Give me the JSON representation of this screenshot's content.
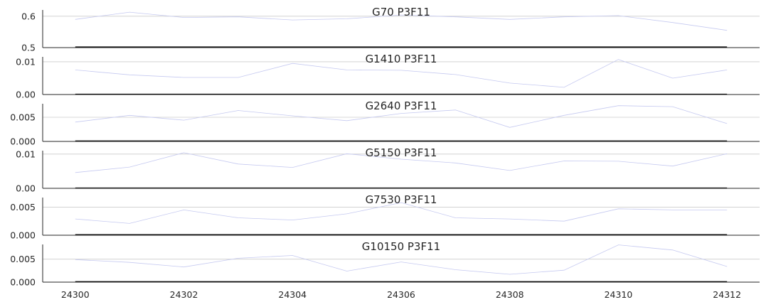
{
  "chart_data": {
    "type": "line",
    "x": [
      24300,
      24301,
      24302,
      24303,
      24304,
      24305,
      24306,
      24307,
      24308,
      24309,
      24310,
      24311,
      24312
    ],
    "x_ticks": [
      24300,
      24302,
      24304,
      24306,
      24308,
      24310,
      24312
    ],
    "xlim": [
      24299.4,
      24312.6
    ],
    "grid": "horizontal",
    "colors": {
      "series": "#c5c9f0",
      "baseline": "#111111",
      "grid": "#cccccc",
      "axis": "#262626",
      "text": "#262626"
    },
    "panels": [
      {
        "title": "G70 P3F11",
        "ylim": [
          0.5,
          0.62
        ],
        "yticks": [
          0.5,
          0.6
        ],
        "tick_labels": [
          "0.5",
          "0.6"
        ],
        "values": [
          0.59,
          0.613,
          0.596,
          0.598,
          0.588,
          0.592,
          0.604,
          0.598,
          0.59,
          0.598,
          0.602,
          0.58,
          0.555
        ],
        "baseline": 0.502
      },
      {
        "title": "G1410 P3F11",
        "ylim": [
          0.0,
          0.0115
        ],
        "yticks": [
          0.0,
          0.01
        ],
        "tick_labels": [
          "0.00",
          "0.01"
        ],
        "values": [
          0.0075,
          0.006,
          0.0052,
          0.0052,
          0.0095,
          0.0075,
          0.0074,
          0.0061,
          0.0035,
          0.0022,
          0.0107,
          0.005,
          0.0075
        ],
        "baseline": 0.0001
      },
      {
        "title": "G2640 P3F11",
        "ylim": [
          0.0,
          0.0078
        ],
        "yticks": [
          0.0,
          0.005
        ],
        "tick_labels": [
          "0.000",
          "0.005"
        ],
        "values": [
          0.004,
          0.0054,
          0.0044,
          0.0064,
          0.0053,
          0.0043,
          0.0058,
          0.0065,
          0.0029,
          0.0054,
          0.0074,
          0.0072,
          0.0037
        ],
        "baseline": 0.0001
      },
      {
        "title": "G5150 P3F11",
        "ylim": [
          0.0,
          0.011
        ],
        "yticks": [
          0.0,
          0.01
        ],
        "tick_labels": [
          "0.00",
          "0.01"
        ],
        "values": [
          0.0046,
          0.0062,
          0.0104,
          0.0071,
          0.0061,
          0.0101,
          0.0085,
          0.0074,
          0.0052,
          0.008,
          0.0079,
          0.0065,
          0.0101
        ],
        "baseline": 0.0001
      },
      {
        "title": "G7530 P3F11",
        "ylim": [
          0.0,
          0.0067
        ],
        "yticks": [
          0.0,
          0.005
        ],
        "tick_labels": [
          "0.000",
          "0.005"
        ],
        "values": [
          0.0029,
          0.0021,
          0.0045,
          0.0031,
          0.0027,
          0.0038,
          0.0058,
          0.0031,
          0.0029,
          0.0025,
          0.0047,
          0.0045,
          0.0045
        ],
        "baseline": 0.0001
      },
      {
        "title": "G10150 P3F11",
        "ylim": [
          0.0,
          0.0082
        ],
        "yticks": [
          0.0,
          0.005
        ],
        "tick_labels": [
          "0.000",
          "0.005"
        ],
        "values": [
          0.0049,
          0.0043,
          0.0033,
          0.0052,
          0.0058,
          0.0024,
          0.0044,
          0.0027,
          0.0017,
          0.0026,
          0.0081,
          0.007,
          0.0034
        ],
        "baseline": 0.0001
      }
    ]
  }
}
